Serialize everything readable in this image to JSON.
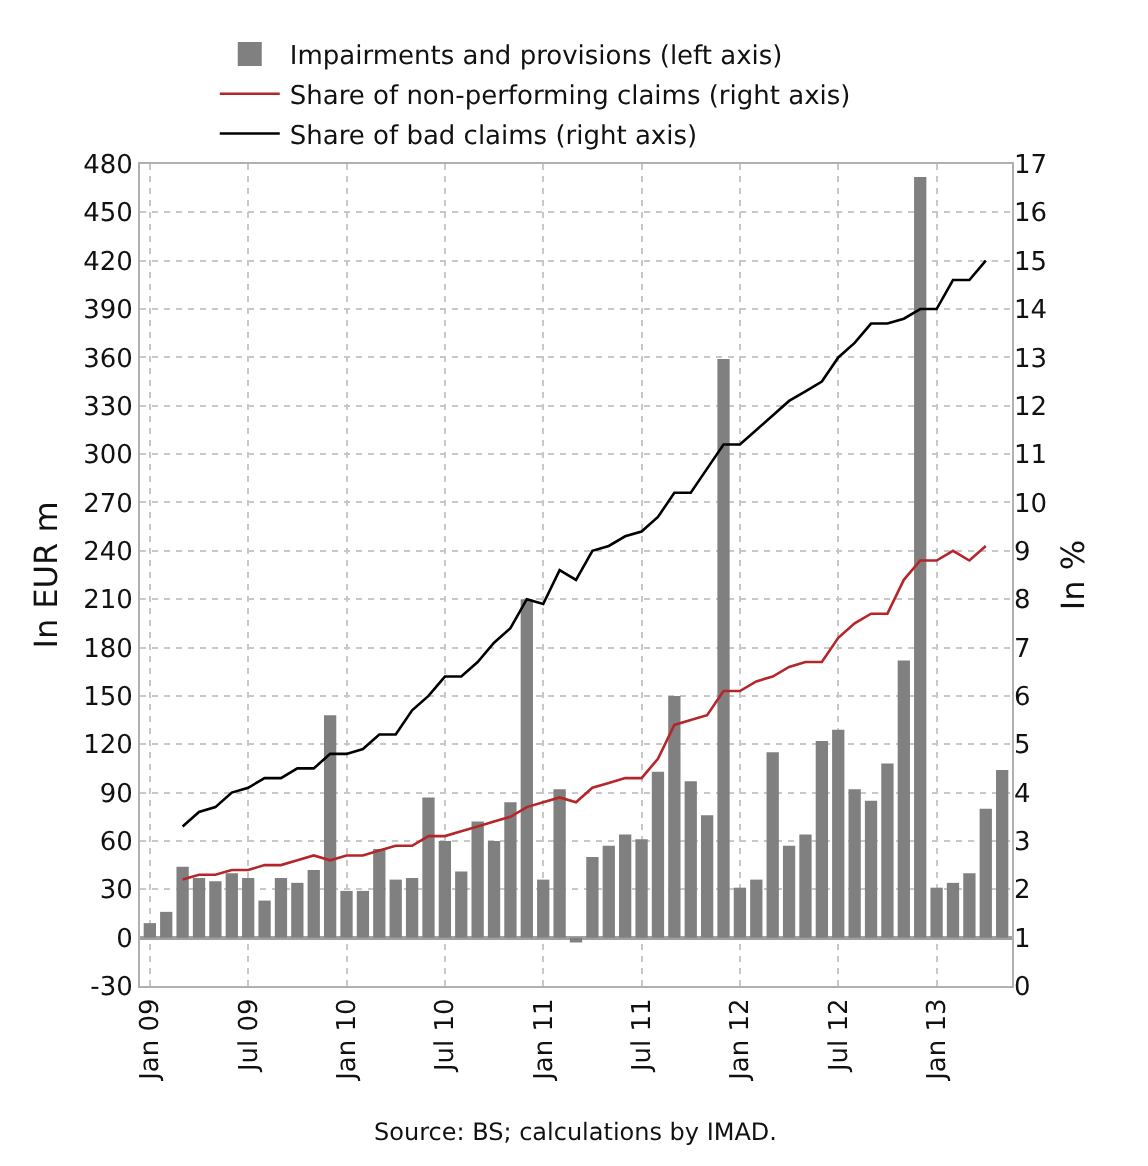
{
  "chart_data": {
    "type": "bar",
    "ylabel": "In EUR m",
    "y2label": "In %",
    "categories": [
      "Jan 09",
      null,
      null,
      null,
      null,
      null,
      "Jul 09",
      null,
      null,
      null,
      null,
      null,
      "Jan 10",
      null,
      null,
      null,
      null,
      null,
      "Jul 10",
      null,
      null,
      null,
      null,
      null,
      "Jan 11",
      null,
      null,
      null,
      null,
      null,
      "Jul 11",
      null,
      null,
      null,
      null,
      null,
      "Jan 12",
      null,
      null,
      null,
      null,
      null,
      "Jul 12",
      null,
      null,
      null,
      null,
      null,
      "Jan 13",
      null,
      null,
      null,
      null
    ],
    "series": [
      {
        "name": "Impairments and provisions (left axis)",
        "color": "#808080",
        "values": [
          9,
          16,
          44,
          37,
          35,
          40,
          37,
          23,
          37,
          34,
          42,
          138,
          29,
          29,
          55,
          36,
          37,
          87,
          60,
          41,
          72,
          60,
          84,
          210,
          36,
          92,
          -3,
          50,
          57,
          64,
          61,
          103,
          150,
          97,
          76,
          359,
          31,
          36,
          115,
          57,
          64,
          122,
          129,
          92,
          85,
          108,
          172,
          472,
          31,
          34,
          40,
          80,
          104
        ]
      },
      {
        "name": "Share of non-performing claims (right axis)",
        "type": "line",
        "axis": "y2",
        "color": "#b5262b",
        "values": [
          null,
          null,
          2.2,
          2.3,
          2.3,
          2.4,
          2.4,
          2.5,
          2.5,
          2.6,
          2.7,
          2.6,
          2.7,
          2.7,
          2.8,
          2.9,
          2.9,
          3.1,
          3.1,
          3.2,
          3.3,
          3.4,
          3.5,
          3.7,
          3.8,
          3.9,
          3.8,
          4.1,
          4.2,
          4.3,
          4.3,
          4.7,
          5.4,
          5.5,
          5.6,
          6.1,
          6.1,
          6.3,
          6.4,
          6.6,
          6.7,
          6.7,
          7.2,
          7.5,
          7.7,
          7.7,
          8.4,
          8.8,
          8.8,
          9.0,
          8.8,
          9.1,
          null
        ]
      },
      {
        "name": "Share of bad claims (right axis)",
        "type": "line",
        "axis": "y2",
        "color": "#000000",
        "values": [
          null,
          null,
          3.3,
          3.6,
          3.7,
          4.0,
          4.1,
          4.3,
          4.3,
          4.5,
          4.5,
          4.8,
          4.8,
          4.9,
          5.2,
          5.2,
          5.7,
          6.0,
          6.4,
          6.4,
          6.7,
          7.1,
          7.4,
          8.0,
          7.9,
          8.6,
          8.4,
          9.0,
          9.1,
          9.3,
          9.4,
          9.7,
          10.2,
          10.2,
          10.7,
          11.2,
          11.2,
          11.5,
          11.8,
          12.1,
          12.3,
          12.5,
          13.0,
          13.3,
          13.7,
          13.7,
          13.8,
          14.0,
          14.0,
          14.6,
          14.6,
          15.0,
          null
        ]
      }
    ],
    "ylim": [
      -30,
      480
    ],
    "yticks": [
      -30,
      0,
      30,
      60,
      90,
      120,
      150,
      180,
      210,
      240,
      270,
      300,
      330,
      360,
      390,
      420,
      450,
      480
    ],
    "y2lim": [
      0,
      17
    ],
    "y2ticks": [
      0,
      1,
      2,
      3,
      4,
      5,
      6,
      7,
      8,
      9,
      10,
      11,
      12,
      13,
      14,
      15,
      16,
      17
    ],
    "grid": true,
    "legend": "top",
    "marker": "none",
    "annotations": [
      "Source: BS; calculations by IMAD."
    ]
  }
}
